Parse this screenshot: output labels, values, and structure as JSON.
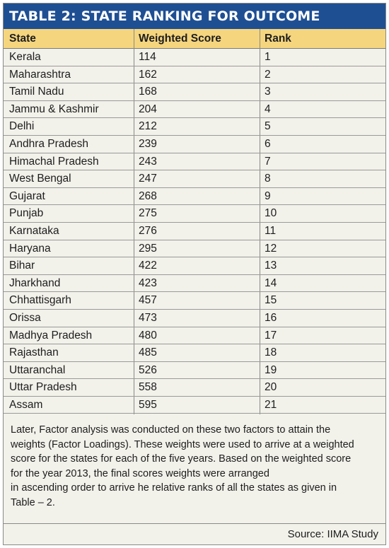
{
  "title": "TABLE 2: STATE RANKING FOR OUTCOME",
  "columns": [
    "State",
    "Weighted Score",
    "Rank"
  ],
  "rows": [
    {
      "state": "Kerala",
      "score": "114",
      "rank": "1"
    },
    {
      "state": "Maharashtra",
      "score": "162",
      "rank": "2"
    },
    {
      "state": "Tamil Nadu",
      "score": "168",
      "rank": "3"
    },
    {
      "state": "Jammu & Kashmir",
      "score": "204",
      "rank": "4"
    },
    {
      "state": "Delhi",
      "score": "212",
      "rank": "5"
    },
    {
      "state": "Andhra Pradesh",
      "score": "239",
      "rank": "6"
    },
    {
      "state": "Himachal Pradesh",
      "score": "243",
      "rank": "7"
    },
    {
      "state": "West Bengal",
      "score": "247",
      "rank": "8"
    },
    {
      "state": "Gujarat",
      "score": "268",
      "rank": "9"
    },
    {
      "state": "Punjab",
      "score": "275",
      "rank": "10"
    },
    {
      "state": "Karnataka",
      "score": "276",
      "rank": "11"
    },
    {
      "state": "Haryana",
      "score": "295",
      "rank": "12"
    },
    {
      "state": "Bihar",
      "score": "422",
      "rank": "13"
    },
    {
      "state": "Jharkhand",
      "score": "423",
      "rank": "14"
    },
    {
      "state": "Chhattisgarh",
      "score": "457",
      "rank": "15"
    },
    {
      "state": "Orissa",
      "score": "473",
      "rank": "16"
    },
    {
      "state": "Madhya Pradesh",
      "score": "480",
      "rank": "17"
    },
    {
      "state": "Rajasthan",
      "score": "485",
      "rank": "18"
    },
    {
      "state": "Uttaranchal",
      "score": "526",
      "rank": "19"
    },
    {
      "state": "Uttar Pradesh",
      "score": "558",
      "rank": "20"
    },
    {
      "state": "Assam",
      "score": "595",
      "rank": "21"
    }
  ],
  "note_lines": [
    "Later, Factor analysis was conducted on these two factors to attain the",
    "weights (Factor Loadings). These weights were used to arrive at a weighted",
    "score for the states for each of the five years. Based on the weighted score",
    "for the year 2013, the final scores weights were arranged",
    "in ascending order to arrive he relative ranks of all the states as given in",
    "Table – 2."
  ],
  "source": "Source: IIMA Study",
  "colors": {
    "title_bg": "#1f4f93",
    "header_bg": "#f5d57e",
    "body_bg": "#f2f1ea"
  }
}
